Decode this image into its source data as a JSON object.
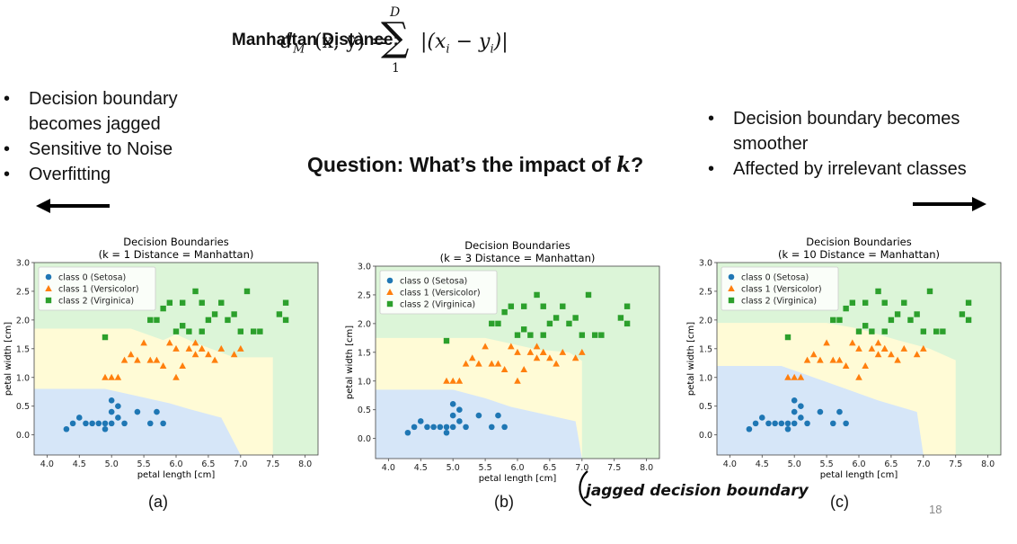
{
  "header": {
    "formula_label": "Manhattan Distance:",
    "formula_lhs": "d",
    "formula_sub": "M",
    "formula_args": "(x, y) =",
    "formula_sum": "∑",
    "formula_upper": "D",
    "formula_lower": "1",
    "formula_rhs": "|(x",
    "formula_rhs_sub_i": "i",
    "formula_rhs_mid": " − y",
    "formula_rhs_end": ")|"
  },
  "left_bullets": [
    "Decision boundary becomes jagged",
    "Sensitive to Noise",
    "Overfitting"
  ],
  "right_bullets": [
    "Decision boundary becomes smoother",
    "Affected by irrelevant classes"
  ],
  "question": {
    "prefix": "Question: What’s the impact of ",
    "k": "k",
    "suffix": "?"
  },
  "captions": [
    "(a)",
    "(b)",
    "(c)"
  ],
  "annotation": "jagged decision boundary",
  "page_number": "18",
  "colors": {
    "setosa": "#1f77b4",
    "versicolor": "#ff7f0e",
    "virginica": "#2ca02c",
    "region0": "#d6e6f8",
    "region1": "#fffbd6",
    "region2": "#dcf5d8",
    "arrow": "#000000"
  },
  "chart_data": [
    {
      "type": "scatter",
      "title": "Decision Boundaries",
      "subtitle": "(k = 1  Distance = Manhattan)",
      "xlabel": "petal length [cm]",
      "ylabel": "petal width [cm]",
      "xlim": [
        3.8,
        8.2
      ],
      "ylim": [
        -0.35,
        3.0
      ],
      "xticks": [
        "4.0",
        "4.5",
        "5.0",
        "5.5",
        "6.0",
        "6.5",
        "7.0",
        "7.5",
        "8.0"
      ],
      "yticks": [
        "0.0",
        "0.5",
        "1.0",
        "1.5",
        "2.0",
        "2.5",
        "3.0"
      ],
      "legend_position": "top-left",
      "legend": [
        "class 0 (Setosa)",
        "class 1 (Versicolor)",
        "class 2 (Virginica)"
      ],
      "boundary": {
        "b01": [
          [
            3.8,
            0.8
          ],
          [
            4.9,
            0.8
          ],
          [
            5.3,
            0.7
          ],
          [
            5.9,
            0.55
          ],
          [
            6.2,
            0.45
          ],
          [
            6.7,
            0.3
          ],
          [
            7.0,
            -0.35
          ]
        ],
        "b12": [
          [
            3.8,
            1.85
          ],
          [
            5.3,
            1.85
          ],
          [
            5.8,
            1.65
          ],
          [
            6.0,
            1.75
          ],
          [
            6.3,
            1.6
          ],
          [
            6.9,
            1.35
          ],
          [
            7.5,
            1.35
          ],
          [
            7.5,
            -0.35
          ]
        ]
      },
      "series": [
        {
          "name": "class 0 (Setosa)",
          "x": [
            4.3,
            4.4,
            4.5,
            4.6,
            4.7,
            4.8,
            4.9,
            5.0,
            5.1,
            5.2,
            5.4,
            5.6,
            5.7,
            5.8,
            5.0,
            5.1,
            4.9,
            5.0
          ],
          "y": [
            0.1,
            0.2,
            0.3,
            0.2,
            0.2,
            0.2,
            0.2,
            0.2,
            0.3,
            0.2,
            0.4,
            0.2,
            0.4,
            0.2,
            0.4,
            0.5,
            0.1,
            0.6
          ]
        },
        {
          "name": "class 1 (Versicolor)",
          "x": [
            4.9,
            5.0,
            5.4,
            5.6,
            5.8,
            6.0,
            6.2,
            6.4,
            6.5,
            6.7,
            6.9,
            7.0,
            5.5,
            5.7,
            6.1,
            6.3,
            6.6,
            6.0,
            5.2,
            5.9,
            6.4,
            5.3,
            6.3,
            5.1
          ],
          "y": [
            1.0,
            1.0,
            1.3,
            1.3,
            1.2,
            1.5,
            1.5,
            1.5,
            1.4,
            1.5,
            1.4,
            1.5,
            1.6,
            1.3,
            1.2,
            1.6,
            1.3,
            1.0,
            1.3,
            1.6,
            1.5,
            1.4,
            1.4,
            1.0
          ]
        },
        {
          "name": "class 2 (Virginica)",
          "x": [
            4.9,
            5.6,
            5.7,
            5.8,
            6.0,
            6.1,
            6.3,
            6.4,
            6.5,
            6.6,
            6.7,
            6.9,
            7.0,
            7.2,
            7.3,
            7.6,
            7.7,
            7.7,
            6.2,
            5.9,
            6.1,
            6.8,
            7.1,
            6.4
          ],
          "y": [
            1.7,
            2.0,
            2.0,
            2.2,
            1.8,
            2.3,
            2.5,
            2.3,
            2.0,
            2.1,
            2.3,
            2.1,
            1.8,
            1.8,
            1.8,
            2.1,
            2.3,
            2.0,
            1.8,
            2.3,
            1.9,
            2.0,
            2.5,
            1.8
          ]
        }
      ]
    },
    {
      "type": "scatter",
      "title": "Decision Boundaries",
      "subtitle": "(k = 3  Distance = Manhattan)",
      "xlabel": "petal length [cm]",
      "ylabel": "petal width [cm]",
      "xlim": [
        3.8,
        8.2
      ],
      "ylim": [
        -0.35,
        3.0
      ],
      "xticks": [
        "4.0",
        "4.5",
        "5.0",
        "5.5",
        "6.0",
        "6.5",
        "7.0",
        "7.5",
        "8.0"
      ],
      "yticks": [
        "0.0",
        "0.5",
        "1.0",
        "1.5",
        "2.0",
        "2.5",
        "3.0"
      ],
      "legend_position": "top-left",
      "legend": [
        "class 0 (Setosa)",
        "class 1 (Versicolor)",
        "class 2 (Virginica)"
      ],
      "boundary": {
        "b01": [
          [
            3.8,
            0.85
          ],
          [
            5.0,
            0.85
          ],
          [
            5.5,
            0.7
          ],
          [
            5.9,
            0.55
          ],
          [
            6.3,
            0.45
          ],
          [
            6.9,
            0.3
          ],
          [
            7.0,
            -0.35
          ]
        ],
        "b12": [
          [
            3.8,
            1.75
          ],
          [
            5.5,
            1.75
          ],
          [
            5.9,
            1.65
          ],
          [
            6.3,
            1.55
          ],
          [
            6.8,
            1.5
          ],
          [
            7.0,
            1.35
          ],
          [
            7.0,
            -0.35
          ]
        ]
      },
      "series": [
        {
          "name": "class 0 (Setosa)",
          "x": [
            4.3,
            4.4,
            4.5,
            4.6,
            4.7,
            4.8,
            4.9,
            5.0,
            5.1,
            5.2,
            5.4,
            5.6,
            5.7,
            5.8,
            5.0,
            5.1,
            4.9,
            5.0
          ],
          "y": [
            0.1,
            0.2,
            0.3,
            0.2,
            0.2,
            0.2,
            0.2,
            0.2,
            0.3,
            0.2,
            0.4,
            0.2,
            0.4,
            0.2,
            0.4,
            0.5,
            0.1,
            0.6
          ]
        },
        {
          "name": "class 1 (Versicolor)",
          "x": [
            4.9,
            5.0,
            5.4,
            5.6,
            5.8,
            6.0,
            6.2,
            6.4,
            6.5,
            6.7,
            6.9,
            7.0,
            5.5,
            5.7,
            6.1,
            6.3,
            6.6,
            6.0,
            5.2,
            5.9,
            6.4,
            5.3,
            6.3,
            5.1
          ],
          "y": [
            1.0,
            1.0,
            1.3,
            1.3,
            1.2,
            1.5,
            1.5,
            1.5,
            1.4,
            1.5,
            1.4,
            1.5,
            1.6,
            1.3,
            1.2,
            1.6,
            1.3,
            1.0,
            1.3,
            1.6,
            1.5,
            1.4,
            1.4,
            1.0
          ]
        },
        {
          "name": "class 2 (Virginica)",
          "x": [
            4.9,
            5.6,
            5.7,
            5.8,
            6.0,
            6.1,
            6.3,
            6.4,
            6.5,
            6.6,
            6.7,
            6.9,
            7.0,
            7.2,
            7.3,
            7.6,
            7.7,
            7.7,
            6.2,
            5.9,
            6.1,
            6.8,
            7.1,
            6.4
          ],
          "y": [
            1.7,
            2.0,
            2.0,
            2.2,
            1.8,
            2.3,
            2.5,
            2.3,
            2.0,
            2.1,
            2.3,
            2.1,
            1.8,
            1.8,
            1.8,
            2.1,
            2.3,
            2.0,
            1.8,
            2.3,
            1.9,
            2.0,
            2.5,
            1.8
          ]
        }
      ]
    },
    {
      "type": "scatter",
      "title": "Decision Boundaries",
      "subtitle": "(k = 10  Distance = Manhattan)",
      "xlabel": "petal length [cm]",
      "ylabel": "petal width [cm]",
      "xlim": [
        3.8,
        8.2
      ],
      "ylim": [
        -0.35,
        3.0
      ],
      "xticks": [
        "4.0",
        "4.5",
        "5.0",
        "5.5",
        "6.0",
        "6.5",
        "7.0",
        "7.5",
        "8.0"
      ],
      "yticks": [
        "0.0",
        "0.5",
        "1.0",
        "1.5",
        "2.0",
        "2.5",
        "3.0"
      ],
      "legend_position": "top-left",
      "legend": [
        "class 0 (Setosa)",
        "class 1 (Versicolor)",
        "class 2 (Virginica)"
      ],
      "boundary": {
        "b01": [
          [
            3.8,
            1.2
          ],
          [
            4.8,
            1.2
          ],
          [
            5.3,
            1.0
          ],
          [
            5.8,
            0.8
          ],
          [
            6.3,
            0.6
          ],
          [
            6.9,
            0.4
          ],
          [
            7.0,
            -0.35
          ]
        ],
        "b12": [
          [
            3.8,
            1.95
          ],
          [
            5.5,
            1.95
          ],
          [
            6.0,
            1.85
          ],
          [
            6.6,
            1.65
          ],
          [
            7.1,
            1.5
          ],
          [
            7.5,
            1.3
          ],
          [
            7.5,
            -0.35
          ]
        ]
      },
      "series": [
        {
          "name": "class 0 (Setosa)",
          "x": [
            4.3,
            4.4,
            4.5,
            4.6,
            4.7,
            4.8,
            4.9,
            5.0,
            5.1,
            5.2,
            5.4,
            5.6,
            5.7,
            5.8,
            5.0,
            5.1,
            4.9,
            5.0
          ],
          "y": [
            0.1,
            0.2,
            0.3,
            0.2,
            0.2,
            0.2,
            0.2,
            0.2,
            0.3,
            0.2,
            0.4,
            0.2,
            0.4,
            0.2,
            0.4,
            0.5,
            0.1,
            0.6
          ]
        },
        {
          "name": "class 1 (Versicolor)",
          "x": [
            4.9,
            5.0,
            5.4,
            5.6,
            5.8,
            6.0,
            6.2,
            6.4,
            6.5,
            6.7,
            6.9,
            7.0,
            5.5,
            5.7,
            6.1,
            6.3,
            6.6,
            6.0,
            5.2,
            5.9,
            6.4,
            5.3,
            6.3,
            5.1
          ],
          "y": [
            1.0,
            1.0,
            1.3,
            1.3,
            1.2,
            1.5,
            1.5,
            1.5,
            1.4,
            1.5,
            1.4,
            1.5,
            1.6,
            1.3,
            1.2,
            1.6,
            1.3,
            1.0,
            1.3,
            1.6,
            1.5,
            1.4,
            1.4,
            1.0
          ]
        },
        {
          "name": "class 2 (Virginica)",
          "x": [
            4.9,
            5.6,
            5.7,
            5.8,
            6.0,
            6.1,
            6.3,
            6.4,
            6.5,
            6.6,
            6.7,
            6.9,
            7.0,
            7.2,
            7.3,
            7.6,
            7.7,
            7.7,
            6.2,
            5.9,
            6.1,
            6.8,
            7.1,
            6.4
          ],
          "y": [
            1.7,
            2.0,
            2.0,
            2.2,
            1.8,
            2.3,
            2.5,
            2.3,
            2.0,
            2.1,
            2.3,
            2.1,
            1.8,
            1.8,
            1.8,
            2.1,
            2.3,
            2.0,
            1.8,
            2.3,
            1.9,
            2.0,
            2.5,
            1.8
          ]
        }
      ]
    }
  ]
}
